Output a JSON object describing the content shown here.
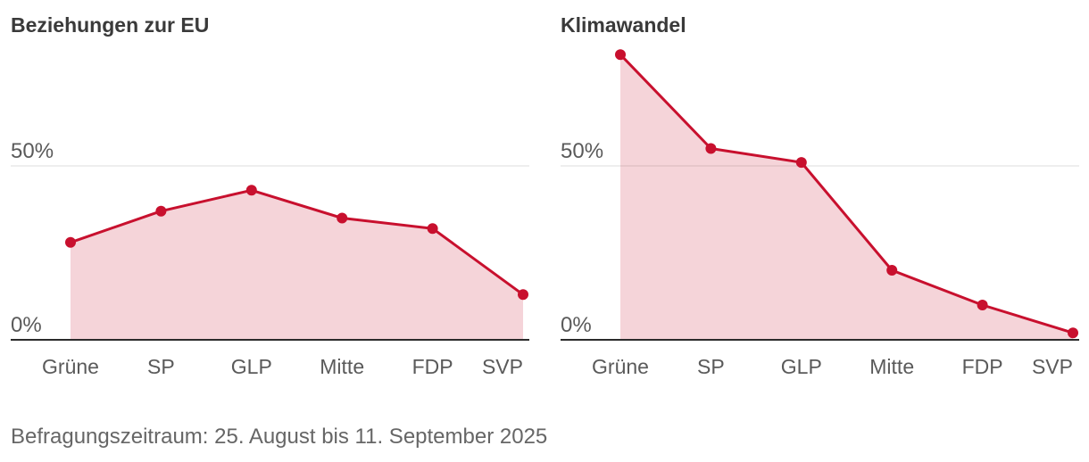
{
  "chart_data": [
    {
      "type": "area",
      "title": "Beziehungen zur EU",
      "categories": [
        "Grüne",
        "SP",
        "GLP",
        "Mitte",
        "FDP",
        "SVP"
      ],
      "values": [
        28,
        37,
        43,
        35,
        32,
        13
      ],
      "ylim": [
        0,
        85
      ],
      "yticks": [
        0,
        50
      ],
      "ytick_labels": [
        "0%",
        "50%"
      ],
      "grid": true,
      "color": "#c8102e"
    },
    {
      "type": "area",
      "title": "Klimawandel",
      "categories": [
        "Grüne",
        "SP",
        "GLP",
        "Mitte",
        "FDP",
        "SVP"
      ],
      "values": [
        82,
        55,
        51,
        20,
        10,
        2
      ],
      "ylim": [
        0,
        85
      ],
      "yticks": [
        0,
        50
      ],
      "ytick_labels": [
        "0%",
        "50%"
      ],
      "grid": true,
      "color": "#c8102e"
    }
  ],
  "footer": {
    "note": "Befragungszeitraum: 25. August bis 11. September 2025"
  }
}
